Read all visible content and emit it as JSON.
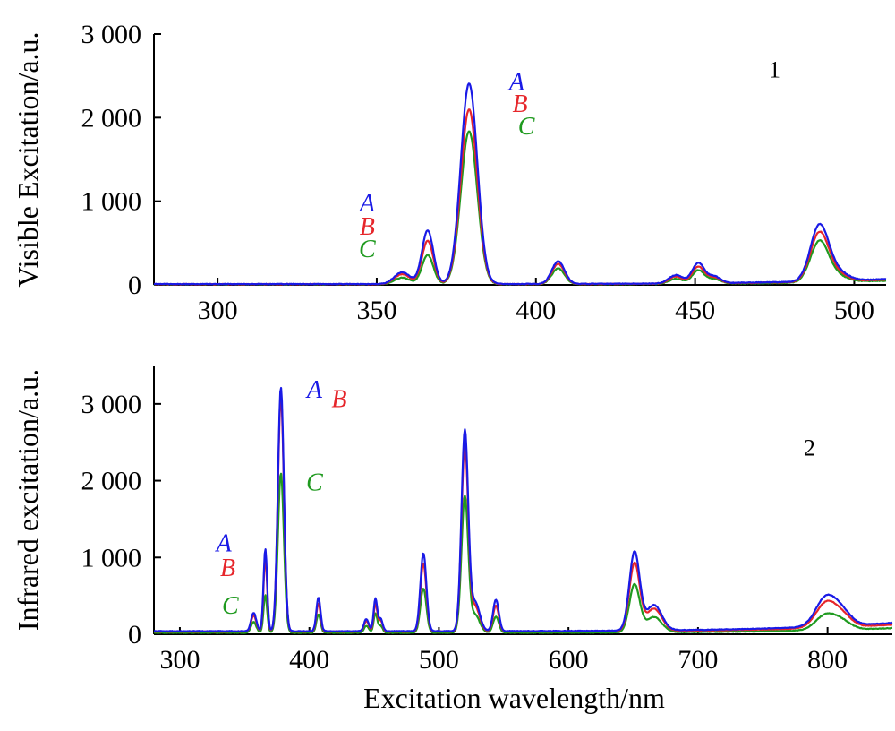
{
  "chart_data": [
    {
      "type": "line",
      "panel_label": "1",
      "ylabel": "Visible Excitation/a.u.",
      "xlabel": "",
      "xlim": [
        280,
        510
      ],
      "ylim": [
        0,
        3000
      ],
      "xticks": [
        300,
        350,
        400,
        450,
        500
      ],
      "xtick_labels": [
        "300",
        "350",
        "400",
        "450",
        "500"
      ],
      "yticks": [
        0,
        1000,
        2000,
        3000
      ],
      "ytick_labels": [
        "0",
        "1 000",
        "2 000",
        "3 000"
      ],
      "peaks": [
        {
          "x": 358,
          "w": 2.5
        },
        {
          "x": 366,
          "w": 1.8
        },
        {
          "x": 379,
          "w": 2.6
        },
        {
          "x": 407,
          "w": 2.0
        },
        {
          "x": 444,
          "w": 2.2
        },
        {
          "x": 451,
          "w": 1.9
        },
        {
          "x": 456,
          "w": 2.0
        },
        {
          "x": 489,
          "w": 2.8
        },
        {
          "x": 494,
          "w": 3.5
        }
      ],
      "series": [
        {
          "name": "A",
          "color": "#1a1ae6",
          "baseline": 10,
          "tail": 60,
          "amps": [
            140,
            640,
            2400,
            270,
            100,
            240,
            80,
            640,
            120
          ]
        },
        {
          "name": "B",
          "color": "#e6262b",
          "baseline": 8,
          "tail": 55,
          "amps": [
            120,
            520,
            2090,
            240,
            85,
            200,
            70,
            560,
            100
          ]
        },
        {
          "name": "C",
          "color": "#1f9a1f",
          "baseline": 6,
          "tail": 45,
          "amps": [
            80,
            350,
            1830,
            190,
            60,
            160,
            55,
            470,
            80
          ]
        }
      ],
      "labels": [
        {
          "text": "A",
          "series": "A",
          "x": 347,
          "y": 880
        },
        {
          "text": "B",
          "series": "B",
          "x": 347,
          "y": 600
        },
        {
          "text": "C",
          "series": "C",
          "x": 347,
          "y": 330
        },
        {
          "text": "A",
          "series": "A",
          "x": 394,
          "y": 2330
        },
        {
          "text": "B",
          "series": "B",
          "x": 395,
          "y": 2070
        },
        {
          "text": "C",
          "series": "C",
          "x": 397,
          "y": 1800
        }
      ],
      "panel_label_pos": {
        "x": 475,
        "y": 2480
      }
    },
    {
      "type": "line",
      "panel_label": "2",
      "ylabel": "Infrared excitation/a.u.",
      "xlabel": "Excitation wavelength/nm",
      "xlim": [
        280,
        850
      ],
      "ylim": [
        0,
        3500
      ],
      "xticks": [
        300,
        400,
        500,
        600,
        700,
        800
      ],
      "xtick_labels": [
        "300",
        "400",
        "500",
        "600",
        "700",
        "800"
      ],
      "yticks": [
        0,
        1000,
        2000,
        3000
      ],
      "ytick_labels": [
        "0",
        "1 000",
        "2 000",
        "3 000"
      ],
      "peaks": [
        {
          "x": 357,
          "w": 2.0
        },
        {
          "x": 366,
          "w": 1.4
        },
        {
          "x": 378,
          "w": 2.3
        },
        {
          "x": 407,
          "w": 1.6
        },
        {
          "x": 444,
          "w": 1.8
        },
        {
          "x": 451,
          "w": 1.4
        },
        {
          "x": 455,
          "w": 1.6
        },
        {
          "x": 488,
          "w": 2.3
        },
        {
          "x": 520,
          "w": 2.6
        },
        {
          "x": 528,
          "w": 3.5
        },
        {
          "x": 544,
          "w": 2.2
        },
        {
          "x": 651,
          "w": 4.0
        },
        {
          "x": 666,
          "w": 6.0
        },
        {
          "x": 799,
          "w": 8.0
        },
        {
          "x": 812,
          "w": 7.0
        }
      ],
      "series": [
        {
          "name": "A",
          "color": "#1a1ae6",
          "baseline": 40,
          "tail": 110,
          "amps": [
            240,
            1070,
            3180,
            440,
            160,
            420,
            160,
            1020,
            2600,
            370,
            410,
            1020,
            330,
            380,
            150
          ]
        },
        {
          "name": "B",
          "color": "#e6262b",
          "baseline": 35,
          "tail": 90,
          "amps": [
            210,
            960,
            3060,
            370,
            140,
            360,
            140,
            890,
            2430,
            320,
            340,
            880,
            290,
            320,
            130
          ]
        },
        {
          "name": "C",
          "color": "#1f9a1f",
          "baseline": 20,
          "tail": 60,
          "amps": [
            140,
            490,
            2080,
            240,
            90,
            250,
            90,
            580,
            1770,
            230,
            210,
            620,
            200,
            200,
            90
          ]
        }
      ],
      "labels": [
        {
          "text": "A",
          "series": "A",
          "x": 334,
          "y": 1080
        },
        {
          "text": "B",
          "series": "B",
          "x": 337,
          "y": 760
        },
        {
          "text": "C",
          "series": "C",
          "x": 339,
          "y": 270
        },
        {
          "text": "A",
          "series": "A",
          "x": 404,
          "y": 3080
        },
        {
          "text": "B",
          "series": "B",
          "x": 423,
          "y": 2960
        },
        {
          "text": "C",
          "series": "C",
          "x": 404,
          "y": 1870
        }
      ],
      "panel_label_pos": {
        "x": 786,
        "y": 2330
      }
    }
  ]
}
